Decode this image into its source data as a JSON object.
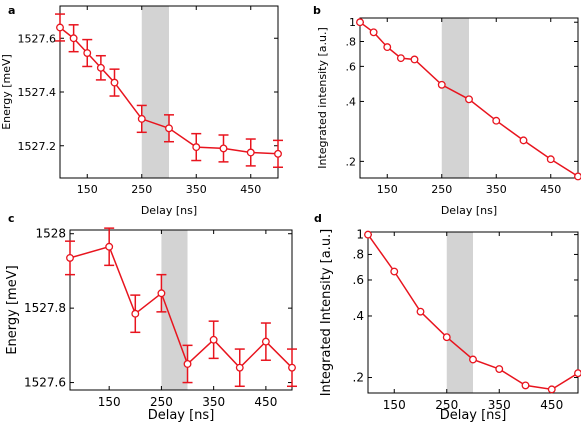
{
  "colors": {
    "series": "#e8141e",
    "shade": "#d3d3d3",
    "axis": "#000000"
  },
  "chart_data": [
    {
      "panel": "a",
      "type": "line",
      "xlabel": "Delay [ns]",
      "ylabel": "Energy [meV]",
      "xlim": [
        100,
        500
      ],
      "ylim": [
        1527.08,
        1527.72
      ],
      "xticks": [
        150,
        250,
        350,
        450
      ],
      "xtick_labels": [
        "150",
        "250",
        "350",
        "450"
      ],
      "yticks": [
        1527.2,
        1527.4,
        1527.6
      ],
      "ytick_labels": [
        "1527.2",
        "1527.4",
        "1527.6"
      ],
      "shaded_x": [
        250,
        300
      ],
      "error_bars": true,
      "x": [
        100,
        125,
        150,
        175,
        200,
        250,
        300,
        350,
        400,
        450,
        500
      ],
      "y": [
        1527.64,
        1527.6,
        1527.545,
        1527.49,
        1527.435,
        1527.3,
        1527.265,
        1527.195,
        1527.19,
        1527.175,
        1527.17
      ],
      "err": [
        0.05,
        0.05,
        0.05,
        0.045,
        0.05,
        0.05,
        0.05,
        0.05,
        0.05,
        0.05,
        0.05
      ]
    },
    {
      "panel": "b",
      "type": "line",
      "xlabel": "Delay [ns]",
      "ylabel": "Integrated intensity [a.u.]",
      "xlim": [
        100,
        500
      ],
      "ylim": [
        0.165,
        1.05
      ],
      "log_y": true,
      "xticks": [
        150,
        250,
        350,
        450
      ],
      "xtick_labels": [
        "150",
        "250",
        "350",
        "450"
      ],
      "yticks": [
        0.2,
        0.4,
        0.6,
        0.8,
        1.0
      ],
      "ytick_labels": [
        ".2",
        ".4",
        ".6",
        ".8",
        "1"
      ],
      "shaded_x": [
        250,
        300
      ],
      "error_bars": false,
      "x": [
        100,
        125,
        150,
        175,
        200,
        250,
        300,
        350,
        400,
        450,
        500
      ],
      "y": [
        1.0,
        0.89,
        0.75,
        0.66,
        0.65,
        0.485,
        0.41,
        0.32,
        0.255,
        0.205,
        0.168
      ]
    },
    {
      "panel": "c",
      "type": "line",
      "xlabel": "Delay [ns]",
      "ylabel": "Energy [meV]",
      "xlim": [
        75,
        500
      ],
      "ylim": [
        1527.58,
        1528.01
      ],
      "xticks": [
        150,
        250,
        350,
        450
      ],
      "xtick_labels": [
        "150",
        "250",
        "350",
        "450"
      ],
      "yticks": [
        1527.6,
        1527.8,
        1528.0
      ],
      "ytick_labels": [
        "1527.6",
        "1527.8",
        "1528"
      ],
      "shaded_x": [
        250,
        300
      ],
      "error_bars": true,
      "x": [
        75,
        150,
        200,
        250,
        300,
        350,
        400,
        450,
        500
      ],
      "y": [
        1527.935,
        1527.965,
        1527.785,
        1527.84,
        1527.65,
        1527.715,
        1527.64,
        1527.71,
        1527.64
      ],
      "err": [
        0.045,
        0.05,
        0.05,
        0.05,
        0.05,
        0.05,
        0.05,
        0.05,
        0.05
      ]
    },
    {
      "panel": "d",
      "type": "line",
      "xlabel": "Delay [ns]",
      "ylabel": "Integrated Intensity [a.u.]",
      "xlim": [
        100,
        500
      ],
      "ylim": [
        0.168,
        1.03
      ],
      "log_y": true,
      "xticks": [
        150,
        250,
        350,
        450
      ],
      "xtick_labels": [
        "150",
        "250",
        "350",
        "450"
      ],
      "yticks": [
        0.2,
        0.4,
        0.6,
        0.8,
        1.0
      ],
      "ytick_labels": [
        ".2",
        ".4",
        ".6",
        ".8",
        "1"
      ],
      "shaded_x": [
        250,
        300
      ],
      "error_bars": false,
      "x": [
        100,
        150,
        200,
        250,
        300,
        350,
        400,
        450,
        500
      ],
      "y": [
        1.0,
        0.66,
        0.42,
        0.315,
        0.245,
        0.22,
        0.183,
        0.175,
        0.21
      ]
    }
  ]
}
